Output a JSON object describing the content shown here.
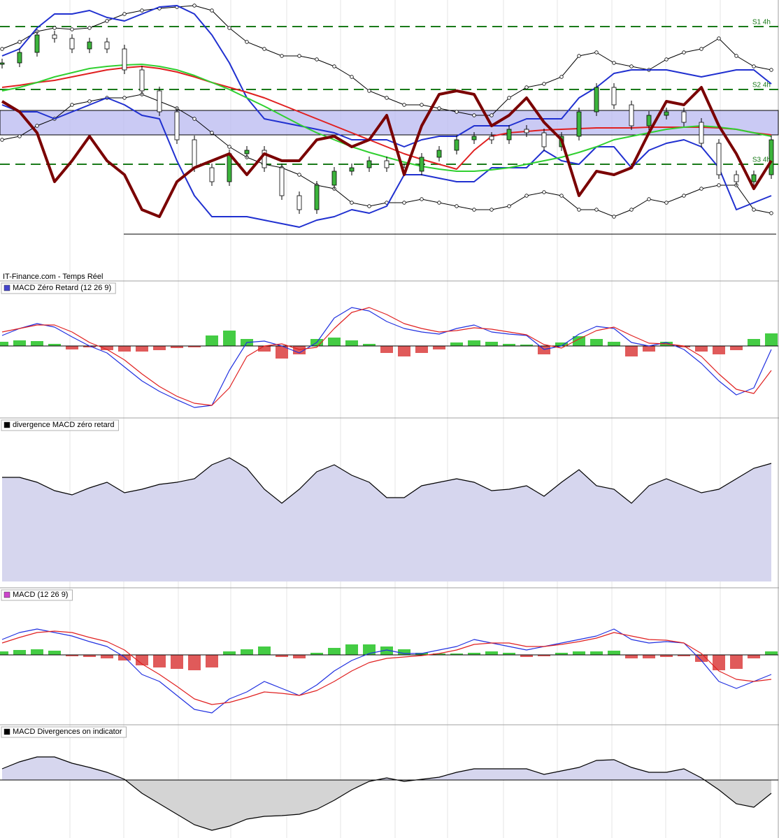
{
  "footer": "IT-Finance.com - Temps Réel",
  "chart_data": [
    {
      "type": "price",
      "ylim": [
        0,
        340
      ],
      "levels": [
        {
          "value": 302,
          "label": "S1 4h"
        },
        {
          "value": 212,
          "label": "S2 4h"
        },
        {
          "value": 105,
          "label": "S3 4h"
        }
      ],
      "level_color": "#1a7a1a",
      "zone": [
        147,
        182
      ],
      "zone_color": "#b8b8f0",
      "support": 5,
      "series": [
        {
          "kind": "dots",
          "color": "#000000",
          "values": [
            270,
            280,
            295,
            300,
            298,
            300,
            310,
            320,
            325,
            328,
            330,
            332,
            325,
            300,
            280,
            270,
            260,
            260,
            255,
            245,
            230,
            210,
            200,
            190,
            190,
            185,
            180,
            175,
            175,
            200,
            215,
            220,
            230,
            260,
            265,
            250,
            245,
            240,
            255,
            265,
            270,
            285,
            260,
            245,
            240
          ]
        },
        {
          "kind": "dots",
          "color": "#000000",
          "values": [
            140,
            145,
            160,
            170,
            190,
            195,
            200,
            200,
            205,
            195,
            185,
            170,
            150,
            130,
            115,
            105,
            100,
            90,
            75,
            70,
            50,
            45,
            50,
            50,
            55,
            50,
            45,
            40,
            40,
            45,
            60,
            65,
            60,
            40,
            40,
            30,
            40,
            55,
            50,
            60,
            70,
            75,
            75,
            40,
            35
          ]
        },
        {
          "kind": "line",
          "color": "#2030d0",
          "width": 2,
          "values": [
            260,
            270,
            300,
            320,
            320,
            325,
            315,
            310,
            320,
            330,
            332,
            320,
            290,
            250,
            200,
            170,
            165,
            160,
            155,
            150,
            140,
            140,
            140,
            130,
            140,
            145,
            145,
            160,
            160,
            160,
            170,
            170,
            170,
            200,
            215,
            235,
            240,
            240,
            240,
            235,
            230,
            235,
            240,
            240,
            220
          ]
        },
        {
          "kind": "line",
          "color": "#2030d0",
          "width": 2,
          "values": [
            190,
            180,
            180,
            170,
            180,
            190,
            200,
            190,
            175,
            170,
            110,
            60,
            30,
            30,
            30,
            25,
            20,
            15,
            25,
            30,
            40,
            35,
            45,
            90,
            90,
            85,
            80,
            80,
            100,
            100,
            100,
            125,
            110,
            105,
            130,
            130,
            100,
            125,
            135,
            140,
            130,
            100,
            40,
            50,
            60
          ]
        },
        {
          "kind": "line",
          "color": "#e02020",
          "width": 2,
          "values": [
            215,
            218,
            222,
            225,
            230,
            235,
            240,
            243,
            245,
            242,
            237,
            230,
            222,
            215,
            208,
            200,
            190,
            180,
            170,
            160,
            150,
            140,
            130,
            120,
            112,
            105,
            98,
            125,
            145,
            150,
            152,
            154,
            155,
            156,
            157,
            157,
            157,
            158,
            158,
            158,
            158,
            157,
            155,
            150,
            147
          ]
        },
        {
          "kind": "line",
          "color": "#30d030",
          "width": 2,
          "values": [
            210,
            215,
            222,
            230,
            236,
            242,
            245,
            247,
            248,
            245,
            240,
            232,
            222,
            212,
            200,
            188,
            175,
            162,
            150,
            140,
            130,
            122,
            115,
            108,
            102,
            98,
            95,
            95,
            97,
            100,
            105,
            110,
            115,
            122,
            130,
            140,
            145,
            150,
            155,
            158,
            160,
            158,
            155,
            150,
            145
          ]
        },
        {
          "kind": "candles",
          "up_color": "#3cb43c",
          "down_color": "#ffffff",
          "values": [
            250,
            265,
            290,
            285,
            270,
            280,
            270,
            240,
            210,
            180,
            140,
            100,
            80,
            120,
            125,
            100,
            60,
            40,
            75,
            95,
            100,
            110,
            100,
            95,
            115,
            125,
            140,
            145,
            140,
            155,
            150,
            130,
            145,
            180,
            215,
            190,
            160,
            175,
            180,
            165,
            135,
            90,
            80,
            90,
            140
          ]
        },
        {
          "kind": "line",
          "color": "#7a0000",
          "width": 4,
          "values": [
            195,
            180,
            150,
            80,
            110,
            145,
            110,
            90,
            40,
            30,
            80,
            100,
            110,
            120,
            90,
            120,
            110,
            110,
            140,
            145,
            130,
            140,
            175,
            90,
            160,
            205,
            210,
            205,
            160,
            175,
            200,
            165,
            140,
            60,
            95,
            90,
            100,
            150,
            195,
            190,
            215,
            160,
            120,
            70,
            110
          ]
        }
      ]
    },
    {
      "type": "oscillator",
      "title": "MACD Zéro Retard (12 26 9)",
      "ylim": [
        -95,
        75
      ],
      "series": [
        {
          "kind": "bars",
          "up_color": "#44cc44",
          "down_color": "#e05a5a",
          "values": [
            6,
            8,
            7,
            3,
            -5,
            -2,
            -6,
            -8,
            -8,
            -6,
            -3,
            -2,
            15,
            22,
            10,
            -8,
            -18,
            -12,
            10,
            12,
            8,
            3,
            -10,
            -15,
            -10,
            -5,
            5,
            8,
            6,
            3,
            2,
            -12,
            5,
            14,
            10,
            6,
            -15,
            -8,
            6,
            -2,
            -8,
            -12,
            -6,
            10,
            18
          ]
        },
        {
          "kind": "line",
          "color": "#2030e0",
          "width": 1.2,
          "values": [
            15,
            25,
            32,
            27,
            13,
            0,
            -10,
            -30,
            -50,
            -65,
            -77,
            -88,
            -85,
            -35,
            5,
            7,
            0,
            -10,
            5,
            40,
            55,
            50,
            35,
            25,
            20,
            17,
            25,
            30,
            20,
            17,
            15,
            -5,
            0,
            17,
            28,
            25,
            5,
            0,
            5,
            -5,
            -25,
            -50,
            -70,
            -60,
            -5
          ]
        },
        {
          "kind": "line",
          "color": "#e02020",
          "width": 1.2,
          "values": [
            20,
            25,
            30,
            30,
            20,
            5,
            -5,
            -20,
            -40,
            -58,
            -72,
            -82,
            -85,
            -60,
            -15,
            0,
            3,
            -5,
            -2,
            25,
            48,
            55,
            45,
            32,
            25,
            20,
            22,
            26,
            24,
            20,
            16,
            2,
            -3,
            10,
            22,
            27,
            15,
            4,
            3,
            0,
            -15,
            -40,
            -62,
            -68,
            -35
          ]
        }
      ]
    },
    {
      "type": "area",
      "title": "divergence MACD zéro retard",
      "ylim": [
        0,
        230
      ],
      "series": [
        {
          "kind": "area",
          "color": "#000000",
          "fill": "#d6d6ee",
          "values": [
            149,
            149,
            142,
            130,
            124,
            134,
            142,
            127,
            132,
            139,
            142,
            147,
            167,
            177,
            162,
            132,
            112,
            132,
            157,
            167,
            152,
            142,
            120,
            120,
            137,
            142,
            147,
            142,
            130,
            132,
            137,
            122,
            142,
            160,
            137,
            132,
            112,
            137,
            147,
            137,
            127,
            132,
            147,
            162,
            169
          ]
        }
      ]
    },
    {
      "type": "oscillator",
      "title": "MACD (12 26 9)",
      "ylim": [
        -93,
        79
      ],
      "series": [
        {
          "kind": "bars",
          "up_color": "#44cc44",
          "down_color": "#e05a5a",
          "values": [
            5,
            7,
            8,
            6,
            -2,
            -3,
            -5,
            -8,
            -15,
            -18,
            -20,
            -22,
            -18,
            5,
            8,
            12,
            -3,
            -5,
            3,
            10,
            15,
            15,
            12,
            8,
            3,
            2,
            2,
            3,
            5,
            3,
            -3,
            -2,
            3,
            5,
            5,
            6,
            -5,
            -5,
            -3,
            -2,
            -10,
            -22,
            -20,
            -5,
            5
          ]
        },
        {
          "kind": "line",
          "color": "#2030e0",
          "width": 1.2,
          "values": [
            22,
            32,
            37,
            32,
            27,
            19,
            12,
            -3,
            -28,
            -38,
            -58,
            -78,
            -83,
            -63,
            -53,
            -38,
            -48,
            -58,
            -43,
            -23,
            -8,
            2,
            7,
            2,
            2,
            7,
            12,
            22,
            17,
            12,
            7,
            12,
            17,
            22,
            27,
            37,
            22,
            17,
            19,
            17,
            -8,
            -38,
            -48,
            -38,
            -28
          ]
        },
        {
          "kind": "line",
          "color": "#e02020",
          "width": 1.2,
          "values": [
            17,
            25,
            32,
            34,
            32,
            25,
            19,
            7,
            -13,
            -28,
            -45,
            -63,
            -71,
            -68,
            -61,
            -53,
            -55,
            -58,
            -51,
            -38,
            -23,
            -11,
            -5,
            -3,
            -1,
            2,
            7,
            15,
            17,
            17,
            12,
            12,
            15,
            19,
            24,
            32,
            27,
            22,
            21,
            17,
            2,
            -23,
            -35,
            -38,
            -35
          ]
        }
      ]
    },
    {
      "type": "area",
      "title": "MACD Divergences on indicator",
      "ylim": [
        -83,
        61
      ],
      "series": [
        {
          "kind": "area",
          "color": "#000000",
          "fill": "#d6d6ee",
          "neg_fill": "#d4d4d4",
          "values": [
            16,
            26,
            33,
            33,
            24,
            18,
            11,
            1,
            -19,
            -34,
            -49,
            -64,
            -72,
            -66,
            -56,
            -52,
            -51,
            -49,
            -42,
            -29,
            -14,
            -2,
            3,
            -2,
            1,
            4,
            11,
            16,
            16,
            16,
            16,
            8,
            13,
            18,
            28,
            29,
            18,
            11,
            11,
            16,
            3,
            -14,
            -34,
            -39,
            -19
          ]
        }
      ]
    }
  ]
}
